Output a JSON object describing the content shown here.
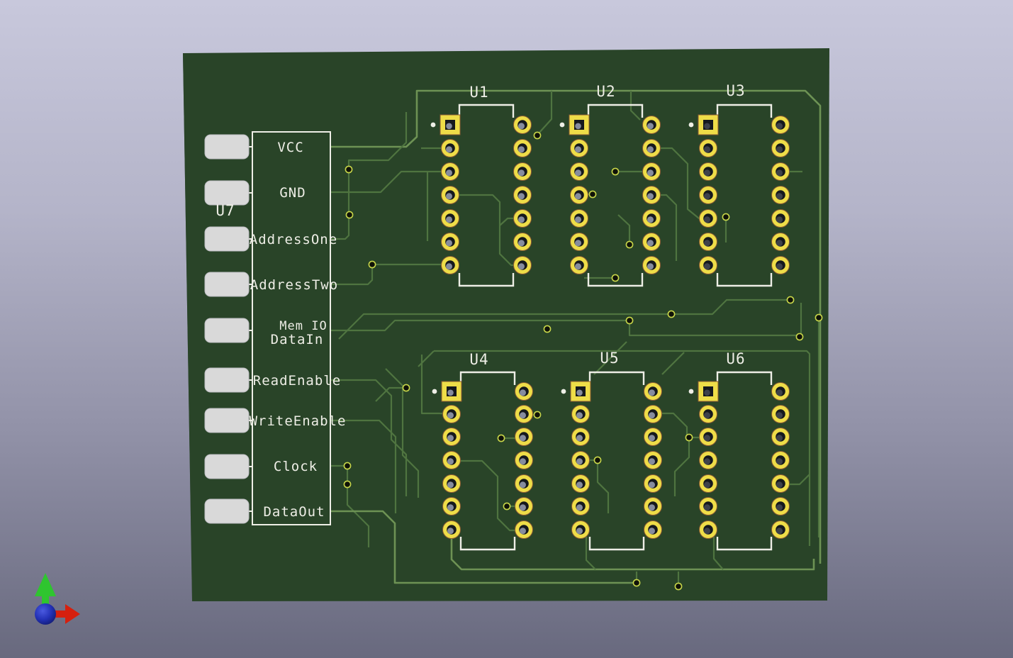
{
  "colors": {
    "board": "#294428",
    "board_side": "#555a6b",
    "trace": "#4f7440",
    "trace_bright": "#6d9254",
    "silkscreen": "#eeeee6",
    "pad": "#eedd48",
    "pad_edge": "#8a5a35",
    "hole": "#15181d",
    "hole_shine": "#9aa1b5",
    "connector_pad": "#d9d9d9",
    "connector_pad_edge": "#bdbdc2",
    "via_ring": "#c8d64a",
    "via_hole": "#101208"
  },
  "silkscreen": {
    "connector": {
      "ref": "U7",
      "note": "Mem IO",
      "pins": [
        "VCC",
        "GND",
        "AddressOne",
        "AddressTwo",
        "DataIn",
        "ReadEnable",
        "WriteEnable",
        "Clock",
        "DataOut"
      ]
    },
    "ics": [
      {
        "ref": "U1"
      },
      {
        "ref": "U2"
      },
      {
        "ref": "U3"
      },
      {
        "ref": "U4"
      },
      {
        "ref": "U5"
      },
      {
        "ref": "U6"
      }
    ]
  },
  "axis_gizmo": {
    "x_axis_color": "#d6200e",
    "y_axis_color": "#2fc52f",
    "z_axis_color": "#2431b4"
  }
}
